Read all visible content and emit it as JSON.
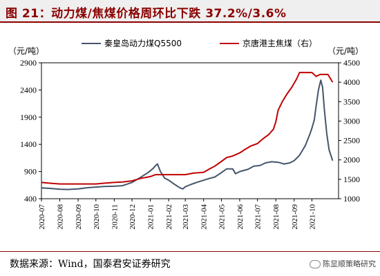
{
  "header": {
    "title": "图 21：动力煤/焦煤价格周环比下跌 37.2%/3.6%"
  },
  "footer": {
    "source": "数据来源：Wind，国泰君安证券研究",
    "watermark": "陈显顺策略研究"
  },
  "chart_data": {
    "type": "line",
    "ylabel_left": "（元/吨）",
    "ylabel_right": "（元/吨）",
    "ylim_left": [
      400,
      2900
    ],
    "yticks_left": [
      400,
      900,
      1400,
      1900,
      2400,
      2900
    ],
    "ylim_right": [
      1000,
      4500
    ],
    "yticks_right": [
      1000,
      1500,
      2000,
      2500,
      3000,
      3500,
      4000,
      4500
    ],
    "xlim": [
      "2020-07-01",
      "2021-11-15"
    ],
    "xtick_labels": [
      "2020-07",
      "2020-08",
      "2020-09",
      "2020-10",
      "2020-11",
      "2020-12",
      "2021-01",
      "2021-02",
      "2021-03",
      "2021-04",
      "2021-05",
      "2021-06",
      "2021-07",
      "2021-08",
      "2021-09",
      "2021-10"
    ],
    "legend_position": "top",
    "series": [
      {
        "name": "秦皇岛动力煤Q5500",
        "axis": "left",
        "color": "#44546a",
        "points": [
          [
            "2020-07-01",
            600
          ],
          [
            "2020-07-15",
            590
          ],
          [
            "2020-08-01",
            575
          ],
          [
            "2020-08-15",
            570
          ],
          [
            "2020-09-01",
            580
          ],
          [
            "2020-09-15",
            600
          ],
          [
            "2020-10-01",
            615
          ],
          [
            "2020-10-15",
            625
          ],
          [
            "2020-11-01",
            630
          ],
          [
            "2020-11-15",
            640
          ],
          [
            "2020-12-01",
            700
          ],
          [
            "2020-12-15",
            790
          ],
          [
            "2020-12-28",
            880
          ],
          [
            "2021-01-05",
            950
          ],
          [
            "2021-01-10",
            1010
          ],
          [
            "2021-01-13",
            1040
          ],
          [
            "2021-01-18",
            900
          ],
          [
            "2021-01-25",
            780
          ],
          [
            "2021-02-01",
            740
          ],
          [
            "2021-02-10",
            670
          ],
          [
            "2021-02-20",
            600
          ],
          [
            "2021-02-25",
            580
          ],
          [
            "2021-03-01",
            620
          ],
          [
            "2021-03-10",
            660
          ],
          [
            "2021-03-20",
            700
          ],
          [
            "2021-04-01",
            740
          ],
          [
            "2021-04-10",
            770
          ],
          [
            "2021-04-20",
            800
          ],
          [
            "2021-05-01",
            880
          ],
          [
            "2021-05-10",
            950
          ],
          [
            "2021-05-20",
            950
          ],
          [
            "2021-05-25",
            860
          ],
          [
            "2021-06-01",
            900
          ],
          [
            "2021-06-15",
            940
          ],
          [
            "2021-06-25",
            1000
          ],
          [
            "2021-07-05",
            1010
          ],
          [
            "2021-07-15",
            1060
          ],
          [
            "2021-07-25",
            1080
          ],
          [
            "2021-08-05",
            1070
          ],
          [
            "2021-08-15",
            1040
          ],
          [
            "2021-08-25",
            1060
          ],
          [
            "2021-09-01",
            1100
          ],
          [
            "2021-09-10",
            1200
          ],
          [
            "2021-09-20",
            1380
          ],
          [
            "2021-09-28",
            1600
          ],
          [
            "2021-10-01",
            1700
          ],
          [
            "2021-10-05",
            1850
          ],
          [
            "2021-10-08",
            2100
          ],
          [
            "2021-10-12",
            2400
          ],
          [
            "2021-10-16",
            2580
          ],
          [
            "2021-10-19",
            2450
          ],
          [
            "2021-10-22",
            2050
          ],
          [
            "2021-10-26",
            1600
          ],
          [
            "2021-10-30",
            1300
          ],
          [
            "2021-11-05",
            1100
          ]
        ]
      },
      {
        "name": "京唐港主焦煤（右）",
        "axis": "right",
        "color": "#c00000",
        "points": [
          [
            "2020-07-01",
            1420
          ],
          [
            "2020-07-15",
            1400
          ],
          [
            "2020-08-01",
            1380
          ],
          [
            "2020-09-01",
            1380
          ],
          [
            "2020-10-01",
            1380
          ],
          [
            "2020-10-15",
            1400
          ],
          [
            "2020-11-01",
            1420
          ],
          [
            "2020-11-15",
            1430
          ],
          [
            "2020-12-01",
            1460
          ],
          [
            "2020-12-15",
            1520
          ],
          [
            "2021-01-01",
            1570
          ],
          [
            "2021-01-10",
            1620
          ],
          [
            "2021-02-01",
            1620
          ],
          [
            "2021-03-01",
            1620
          ],
          [
            "2021-03-15",
            1660
          ],
          [
            "2021-04-01",
            1680
          ],
          [
            "2021-04-10",
            1760
          ],
          [
            "2021-04-20",
            1840
          ],
          [
            "2021-05-01",
            1960
          ],
          [
            "2021-05-10",
            2060
          ],
          [
            "2021-05-20",
            2100
          ],
          [
            "2021-06-01",
            2180
          ],
          [
            "2021-06-10",
            2270
          ],
          [
            "2021-06-20",
            2360
          ],
          [
            "2021-07-01",
            2420
          ],
          [
            "2021-07-10",
            2540
          ],
          [
            "2021-07-20",
            2650
          ],
          [
            "2021-07-28",
            2790
          ],
          [
            "2021-08-01",
            2980
          ],
          [
            "2021-08-05",
            3280
          ],
          [
            "2021-08-12",
            3500
          ],
          [
            "2021-08-20",
            3700
          ],
          [
            "2021-08-28",
            3870
          ],
          [
            "2021-09-05",
            4080
          ],
          [
            "2021-09-10",
            4250
          ],
          [
            "2021-10-01",
            4250
          ],
          [
            "2021-10-08",
            4150
          ],
          [
            "2021-10-15",
            4200
          ],
          [
            "2021-10-28",
            4200
          ],
          [
            "2021-11-05",
            4000
          ]
        ]
      }
    ]
  }
}
